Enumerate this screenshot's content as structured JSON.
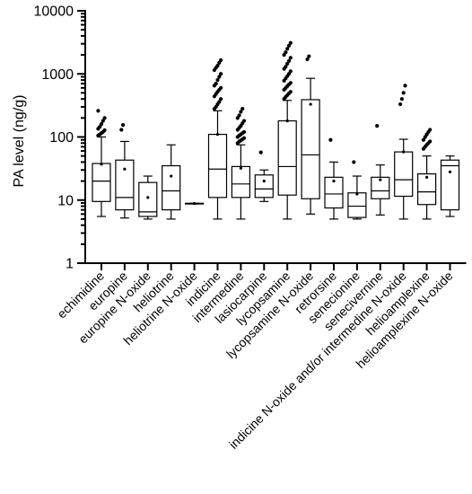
{
  "chart_data": {
    "type": "box",
    "title": "",
    "ylabel": "PA level  (ng/g)",
    "xlabel": "",
    "yscale": "log",
    "ylim": [
      1,
      10000
    ],
    "yticks": [
      1,
      10,
      100,
      1000,
      10000
    ],
    "ytick_labels": [
      "1",
      "10",
      "100",
      "1000",
      "10000"
    ],
    "grid": false,
    "legend": "none",
    "series": [
      {
        "category": "echimidine",
        "min": 5.5,
        "q1": 9.5,
        "median": 20,
        "q3": 38,
        "max": 100,
        "mean": 37,
        "outliers": [
          105,
          110,
          115,
          120,
          128,
          135,
          145,
          160,
          180,
          200,
          260
        ]
      },
      {
        "category": "europine",
        "min": 5.2,
        "q1": 7,
        "median": 11,
        "q3": 43,
        "max": 85,
        "mean": 31,
        "outliers": [
          130,
          155
        ]
      },
      {
        "category": "europine N-oxide",
        "min": 5,
        "q1": 5.5,
        "median": 6.5,
        "q3": 19,
        "max": 24,
        "mean": 11,
        "outliers": []
      },
      {
        "category": "heliotrine",
        "min": 5,
        "q1": 7,
        "median": 14,
        "q3": 35,
        "max": 75,
        "mean": 24,
        "outliers": []
      },
      {
        "category": "heliotrine N-oxide",
        "min": 8.7,
        "q1": 8.7,
        "median": 8.8,
        "q3": 8.9,
        "max": 8.9,
        "mean": 8.8,
        "outliers": []
      },
      {
        "category": "indicine",
        "min": 5,
        "q1": 11,
        "median": 31,
        "q3": 110,
        "max": 260,
        "mean": 110,
        "outliers": [
          280,
          300,
          330,
          360,
          400,
          440,
          480,
          520,
          560,
          600,
          650,
          700,
          800,
          900,
          1000,
          1150,
          1250,
          1350,
          1500,
          1650
        ]
      },
      {
        "category": "intermedine",
        "min": 5,
        "q1": 11,
        "median": 18,
        "q3": 34,
        "max": 75,
        "mean": 32,
        "outliers": [
          80,
          85,
          88,
          92,
          96,
          100,
          105,
          110,
          115,
          120,
          130,
          140,
          150,
          165,
          180,
          200,
          220,
          250,
          280
        ]
      },
      {
        "category": "lasiocarpine",
        "min": 9.5,
        "q1": 11,
        "median": 15,
        "q3": 25,
        "max": 30,
        "mean": 20,
        "outliers": [
          57
        ]
      },
      {
        "category": "lycopsamine",
        "min": 5,
        "q1": 12,
        "median": 34,
        "q3": 180,
        "max": 380,
        "mean": 180,
        "outliers": [
          400,
          430,
          460,
          490,
          520,
          560,
          600,
          640,
          680,
          720,
          780,
          850,
          920,
          1000,
          1100,
          1200,
          1300,
          1450,
          1600,
          1800,
          2000,
          2200,
          2500,
          2800,
          3100
        ]
      },
      {
        "category": "lycopsamine N-oxide",
        "min": 6,
        "q1": 10.5,
        "median": 52,
        "q3": 390,
        "max": 850,
        "mean": 330,
        "outliers": [
          1700,
          1900
        ]
      },
      {
        "category": "retrorsine",
        "min": 5,
        "q1": 7.5,
        "median": 12.5,
        "q3": 23,
        "max": 40,
        "mean": 20,
        "outliers": [
          90
        ]
      },
      {
        "category": "senecionine",
        "min": 5,
        "q1": 5.3,
        "median": 8,
        "q3": 13,
        "max": 24,
        "mean": 12.5,
        "outliers": [
          40
        ]
      },
      {
        "category": "senecivernine",
        "min": 5.8,
        "q1": 10.5,
        "median": 14,
        "q3": 23,
        "max": 36,
        "mean": 21,
        "outliers": [
          150
        ]
      },
      {
        "category": "indicine N-oxide and/or intermedine N-oxide",
        "min": 5,
        "q1": 11.5,
        "median": 21,
        "q3": 58,
        "max": 92,
        "mean": 58,
        "outliers": [
          330,
          400,
          500,
          650
        ]
      },
      {
        "category": "helioamplexine",
        "min": 5,
        "q1": 8.5,
        "median": 13.5,
        "q3": 26,
        "max": 50,
        "mean": 23,
        "outliers": [
          65,
          70,
          75,
          80,
          85,
          90,
          100,
          110,
          120,
          130
        ]
      },
      {
        "category": "helioamplexine N-oxide",
        "min": 5.5,
        "q1": 7,
        "median": 35,
        "q3": 43,
        "max": 50,
        "mean": 28,
        "outliers": []
      }
    ]
  }
}
